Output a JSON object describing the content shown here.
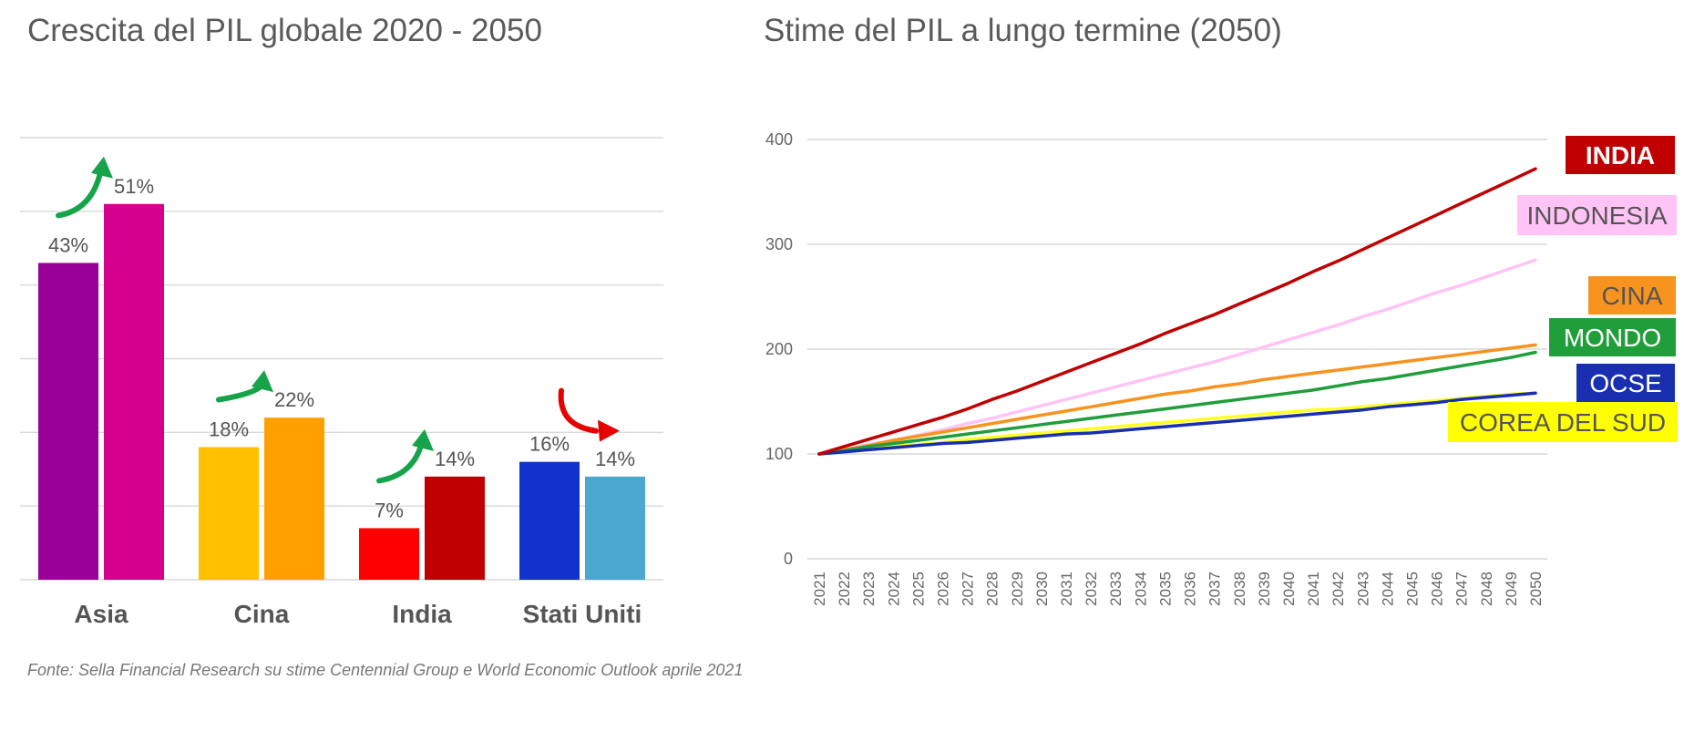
{
  "source_note": "Fonte: Sella Financial Research su stime Centennial Group e World Economic Outlook aprile 2021",
  "colors": {
    "grid": "#d9d9d9",
    "arrow_up": "#16a34a",
    "arrow_down": "#e60000"
  },
  "chart_data": [
    {
      "type": "bar",
      "title": "Crescita del PIL globale 2020 - 2050",
      "categories": [
        "Asia",
        "Cina",
        "India",
        "Stati Uniti"
      ],
      "ylim": [
        0,
        60
      ],
      "grid": true,
      "groups": [
        {
          "category": "Asia",
          "values": [
            43,
            51
          ],
          "labels": [
            "43%",
            "51%"
          ],
          "colors": [
            "#990099",
            "#d6008f"
          ],
          "trend": "up"
        },
        {
          "category": "Cina",
          "values": [
            18,
            22
          ],
          "labels": [
            "18%",
            "22%"
          ],
          "colors": [
            "#ffc000",
            "#ffa000"
          ],
          "trend": "up"
        },
        {
          "category": "India",
          "values": [
            7,
            14
          ],
          "labels": [
            "7%",
            "14%"
          ],
          "colors": [
            "#ff0000",
            "#c00000"
          ],
          "trend": "up"
        },
        {
          "category": "Stati Uniti",
          "values": [
            16,
            14
          ],
          "labels": [
            "16%",
            "14%"
          ],
          "colors": [
            "#1133cc",
            "#4ba6d0"
          ],
          "trend": "down"
        }
      ]
    },
    {
      "type": "line",
      "title": "Stime del PIL a lungo termine (2050)",
      "x": [
        "2021",
        "2022",
        "2023",
        "2024",
        "2025",
        "2026",
        "2027",
        "2028",
        "2029",
        "2030",
        "2031",
        "2032",
        "2033",
        "2034",
        "2035",
        "2036",
        "2037",
        "2038",
        "2039",
        "2040",
        "2041",
        "2042",
        "2043",
        "2044",
        "2045",
        "2046",
        "2047",
        "2048",
        "2049",
        "2050"
      ],
      "ylim": [
        0,
        400
      ],
      "yticks": [
        0,
        100,
        200,
        300,
        400
      ],
      "grid": true,
      "legend_placement": "right",
      "series": [
        {
          "name": "INDIA",
          "color": "#c00000",
          "label_bg": "#c00000",
          "label_color": "#ffffff",
          "bold": true,
          "values": [
            100,
            107,
            114,
            121,
            128,
            135,
            143,
            152,
            160,
            169,
            178,
            187,
            196,
            205,
            215,
            224,
            233,
            243,
            253,
            263,
            274,
            284,
            295,
            306,
            317,
            328,
            339,
            350,
            361,
            372
          ]
        },
        {
          "name": "INDONESIA",
          "color": "#ffc4f5",
          "label_bg": "#ffc4f5",
          "label_color": "#555555",
          "bold": false,
          "values": [
            100,
            104,
            109,
            113,
            118,
            123,
            129,
            134,
            140,
            146,
            152,
            158,
            164,
            170,
            176,
            182,
            188,
            195,
            202,
            209,
            216,
            223,
            231,
            238,
            246,
            254,
            261,
            269,
            277,
            285
          ]
        },
        {
          "name": "CINA",
          "color": "#f7931e",
          "label_bg": "#f7931e",
          "label_color": "#555555",
          "bold": false,
          "values": [
            100,
            104,
            108,
            113,
            117,
            121,
            125,
            129,
            133,
            137,
            141,
            145,
            149,
            153,
            157,
            160,
            164,
            167,
            171,
            174,
            177,
            180,
            183,
            186,
            189,
            192,
            195,
            198,
            201,
            204
          ]
        },
        {
          "name": "MONDO",
          "color": "#1f9e3a",
          "label_bg": "#1f9e3a",
          "label_color": "#ffffff",
          "bold": false,
          "values": [
            100,
            103,
            107,
            110,
            113,
            116,
            119,
            122,
            125,
            128,
            131,
            134,
            137,
            140,
            143,
            146,
            149,
            152,
            155,
            158,
            161,
            165,
            169,
            172,
            176,
            180,
            184,
            188,
            192,
            197
          ]
        },
        {
          "name": "OCSE",
          "color": "#1a2fb0",
          "label_bg": "#1a2fb0",
          "label_color": "#ffffff",
          "bold": false,
          "values": [
            100,
            102,
            104,
            106,
            108,
            110,
            111,
            113,
            115,
            117,
            119,
            120,
            122,
            124,
            126,
            128,
            130,
            132,
            134,
            136,
            138,
            140,
            142,
            145,
            147,
            149,
            152,
            154,
            156,
            158
          ]
        },
        {
          "name": "COREA DEL SUD",
          "color": "#ffff22",
          "label_bg": "#ffff00",
          "label_color": "#555555",
          "bold": false,
          "values": [
            100,
            102,
            105,
            107,
            109,
            111,
            114,
            116,
            118,
            120,
            122,
            124,
            126,
            128,
            130,
            132,
            134,
            136,
            138,
            140,
            142,
            143,
            145,
            147,
            149,
            151,
            153,
            155,
            157,
            158
          ]
        }
      ]
    }
  ]
}
